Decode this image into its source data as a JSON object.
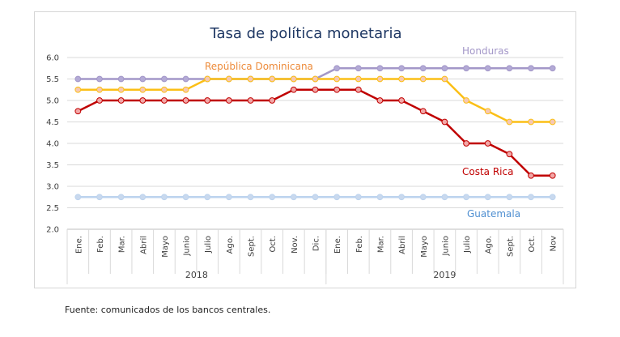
{
  "chart_data": {
    "type": "line",
    "title": "Tasa de política monetaria",
    "xlabel": "",
    "ylabel": "",
    "ylim": [
      2.0,
      6.0
    ],
    "yticks": [
      "2.0",
      "2.5",
      "3.0",
      "3.5",
      "4.0",
      "4.5",
      "5.0",
      "5.5",
      "6.0"
    ],
    "grid": true,
    "categories": [
      "Ene.",
      "Feb.",
      "Mar.",
      "Abril",
      "Mayo",
      "Junio",
      "Julio",
      "Ago.",
      "Sept.",
      "Oct.",
      "Nov.",
      "Dic.",
      "Ene.",
      "Feb.",
      "Mar.",
      "Abril",
      "Mayo",
      "Junio",
      "Julio",
      "Ago.",
      "Sept.",
      "Oct.",
      "Nov"
    ],
    "groups": [
      {
        "label": "2018",
        "span": 12
      },
      {
        "label": "2019",
        "span": 11
      }
    ],
    "series": [
      {
        "name": "Honduras",
        "color": "#a397c8",
        "marker": "#b3aad6",
        "values": [
          5.5,
          5.5,
          5.5,
          5.5,
          5.5,
          5.5,
          5.5,
          5.5,
          5.5,
          5.5,
          5.5,
          5.5,
          5.75,
          5.75,
          5.75,
          5.75,
          5.75,
          5.75,
          5.75,
          5.75,
          5.75,
          5.75,
          5.75
        ]
      },
      {
        "name": "República Dominicana",
        "color": "#fbbf16",
        "marker": "#f6c8b3",
        "values": [
          5.25,
          5.25,
          5.25,
          5.25,
          5.25,
          5.25,
          5.5,
          5.5,
          5.5,
          5.5,
          5.5,
          5.5,
          5.5,
          5.5,
          5.5,
          5.5,
          5.5,
          5.5,
          5.0,
          4.75,
          4.5,
          4.5,
          4.5
        ]
      },
      {
        "name": "Costa Rica",
        "color": "#c00000",
        "marker": "#f2a7a7",
        "values": [
          4.75,
          5.0,
          5.0,
          5.0,
          5.0,
          5.0,
          5.0,
          5.0,
          5.0,
          5.0,
          5.25,
          5.25,
          5.25,
          5.25,
          5.0,
          5.0,
          4.75,
          4.5,
          4.0,
          4.0,
          3.75,
          3.25,
          3.25
        ]
      },
      {
        "name": "Guatemala",
        "color": "#bcd3ee",
        "marker": "#c9d9ee",
        "values": [
          2.75,
          2.75,
          2.75,
          2.75,
          2.75,
          2.75,
          2.75,
          2.75,
          2.75,
          2.75,
          2.75,
          2.75,
          2.75,
          2.75,
          2.75,
          2.75,
          2.75,
          2.75,
          2.75,
          2.75,
          2.75,
          2.75,
          2.75
        ]
      }
    ],
    "annotations": [
      {
        "text": "Honduras",
        "color": "#a397c8"
      },
      {
        "text": "República Dominicana",
        "color": "#ed8b3a"
      },
      {
        "text": "Costa Rica",
        "color": "#c00000"
      },
      {
        "text": "Guatemala",
        "color": "#4f8fd1"
      }
    ]
  },
  "source": "Fuente: comunicados de los bancos centrales."
}
